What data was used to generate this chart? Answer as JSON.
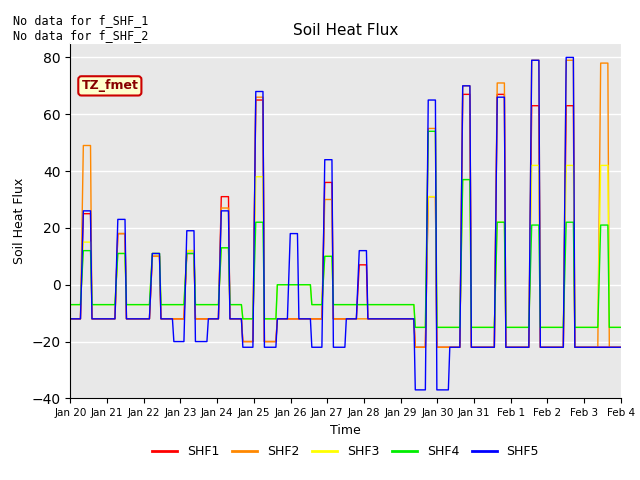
{
  "title": "Soil Heat Flux",
  "ylabel": "Soil Heat Flux",
  "xlabel": "Time",
  "ylim": [
    -40,
    85
  ],
  "yticks": [
    -40,
    -20,
    0,
    20,
    40,
    60,
    80
  ],
  "bg_color": "#e8e8e8",
  "annotation_text": "No data for f_SHF_1\nNo data for f_SHF_2",
  "legend_label": "TZ_fmet",
  "series_colors": {
    "SHF1": "#ff0000",
    "SHF2": "#ff8800",
    "SHF3": "#ffff00",
    "SHF4": "#00ee00",
    "SHF5": "#0000ff"
  },
  "xtick_labels": [
    "Jan 20",
    "Jan 21",
    "Jan 22",
    "Jan 23",
    "Jan 24",
    "Jan 25",
    "Jan 26",
    "Jan 27",
    "Jan 28",
    "Jan 29",
    "Jan 30",
    "Jan 31",
    "Feb 1",
    "Feb 2",
    "Feb 3",
    "Feb 4"
  ],
  "days": 16,
  "pts_per_day": 24
}
